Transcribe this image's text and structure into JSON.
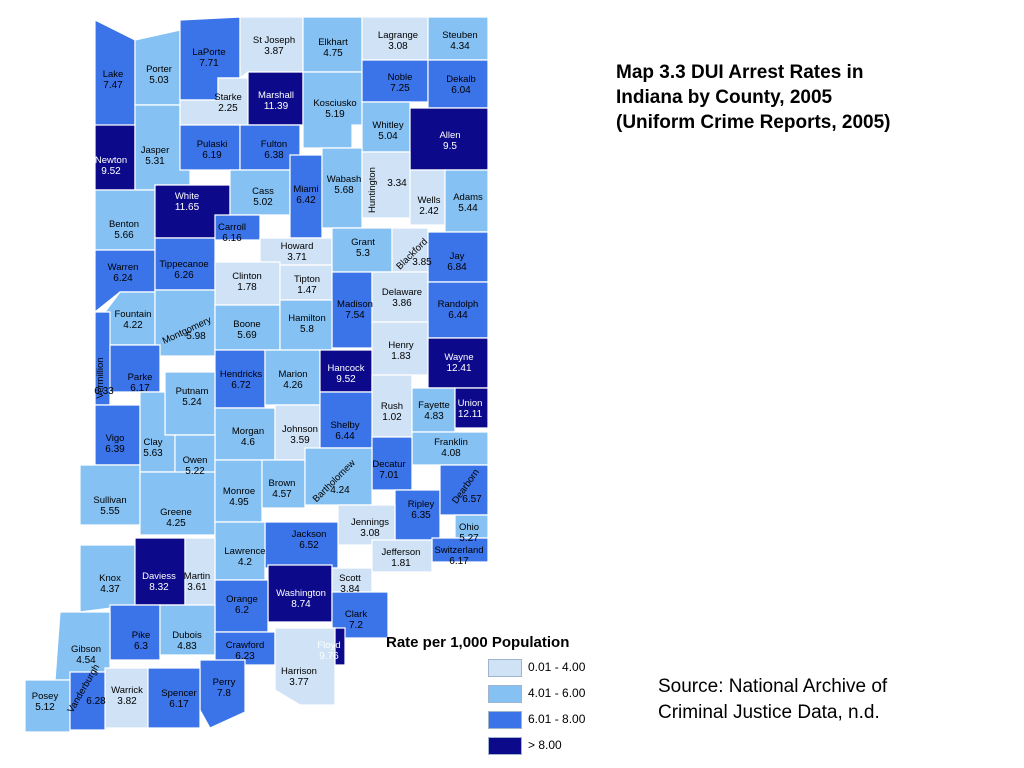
{
  "title_lines": [
    "Map 3.3 DUI Arrest Rates in",
    "Indiana by County, 2005",
    "(Uniform Crime Reports, 2005)"
  ],
  "source_lines": [
    "Source: National Archive of",
    "Criminal Justice Data, n.d."
  ],
  "legend": {
    "title": "Rate per 1,000 Population",
    "items": [
      {
        "label": "0.01 - 4.00",
        "color": "#cfe2f6"
      },
      {
        "label": "4.01 - 6.00",
        "color": "#85c1f2"
      },
      {
        "label": "6.01 - 8.00",
        "color": "#3b73e8"
      },
      {
        "label": "> 8.00",
        "color": "#0c0a8a"
      }
    ]
  },
  "counties": [
    {
      "name": "Lake",
      "value": "7.47"
    },
    {
      "name": "Porter",
      "value": "5.03"
    },
    {
      "name": "LaPorte",
      "value": "7.71"
    },
    {
      "name": "St Joseph",
      "value": "3.87"
    },
    {
      "name": "Elkhart",
      "value": "4.75"
    },
    {
      "name": "Lagrange",
      "value": "3.08"
    },
    {
      "name": "Steuben",
      "value": "4.34"
    },
    {
      "name": "Newton",
      "value": "9.52"
    },
    {
      "name": "Jasper",
      "value": "5.31"
    },
    {
      "name": "Starke",
      "value": "2.25"
    },
    {
      "name": "Marshall",
      "value": "11.39"
    },
    {
      "name": "Kosciusko",
      "value": "5.19"
    },
    {
      "name": "Noble",
      "value": "7.25"
    },
    {
      "name": "Dekalb",
      "value": "6.04"
    },
    {
      "name": "Pulaski",
      "value": "6.19"
    },
    {
      "name": "Fulton",
      "value": "6.38"
    },
    {
      "name": "Whitley",
      "value": "5.04"
    },
    {
      "name": "Allen",
      "value": "9.5"
    },
    {
      "name": "Benton",
      "value": "5.66"
    },
    {
      "name": "White",
      "value": "11.65"
    },
    {
      "name": "Cass",
      "value": "5.02"
    },
    {
      "name": "Miami",
      "value": "6.42"
    },
    {
      "name": "Wabash",
      "value": "5.68"
    },
    {
      "name": "Huntington",
      "value": "3.34"
    },
    {
      "name": "Wells",
      "value": "2.42"
    },
    {
      "name": "Adams",
      "value": "5.44"
    },
    {
      "name": "Warren",
      "value": "6.24"
    },
    {
      "name": "Tippecanoe",
      "value": "6.26"
    },
    {
      "name": "Carroll",
      "value": "6.16"
    },
    {
      "name": "Howard",
      "value": "3.71"
    },
    {
      "name": "Grant",
      "value": "5.3"
    },
    {
      "name": "Blackford",
      "value": "3.85"
    },
    {
      "name": "Jay",
      "value": "6.84"
    },
    {
      "name": "Fountain",
      "value": "4.22"
    },
    {
      "name": "Clinton",
      "value": "1.78"
    },
    {
      "name": "Tipton",
      "value": "1.47"
    },
    {
      "name": "Madison",
      "value": "7.54"
    },
    {
      "name": "Delaware",
      "value": "3.86"
    },
    {
      "name": "Randolph",
      "value": "6.44"
    },
    {
      "name": "Montgomery",
      "value": "5.98"
    },
    {
      "name": "Boone",
      "value": "5.69"
    },
    {
      "name": "Hamilton",
      "value": "5.8"
    },
    {
      "name": "Henry",
      "value": "1.83"
    },
    {
      "name": "Vermillion",
      "value": "6.33"
    },
    {
      "name": "Parke",
      "value": "6.17"
    },
    {
      "name": "Hendricks",
      "value": "6.72"
    },
    {
      "name": "Marion",
      "value": "4.26"
    },
    {
      "name": "Hancock",
      "value": "9.52"
    },
    {
      "name": "Wayne",
      "value": "12.41"
    },
    {
      "name": "Putnam",
      "value": "5.24"
    },
    {
      "name": "Rush",
      "value": "1.02"
    },
    {
      "name": "Fayette",
      "value": "4.83"
    },
    {
      "name": "Union",
      "value": "12.11"
    },
    {
      "name": "Vigo",
      "value": "6.39"
    },
    {
      "name": "Clay",
      "value": "5.63"
    },
    {
      "name": "Morgan",
      "value": "4.6"
    },
    {
      "name": "Johnson",
      "value": "3.59"
    },
    {
      "name": "Shelby",
      "value": "6.44"
    },
    {
      "name": "Franklin",
      "value": "4.08"
    },
    {
      "name": "Owen",
      "value": "5.22"
    },
    {
      "name": "Decatur",
      "value": "7.01"
    },
    {
      "name": "Sullivan",
      "value": "5.55"
    },
    {
      "name": "Greene",
      "value": "4.25"
    },
    {
      "name": "Monroe",
      "value": "4.95"
    },
    {
      "name": "Brown",
      "value": "4.57"
    },
    {
      "name": "Bartholomew",
      "value": "4.24"
    },
    {
      "name": "Ripley",
      "value": "6.35"
    },
    {
      "name": "Dearborn",
      "value": "6.57"
    },
    {
      "name": "Jennings",
      "value": "3.08"
    },
    {
      "name": "Ohio",
      "value": "5.27"
    },
    {
      "name": "Jackson",
      "value": "6.52"
    },
    {
      "name": "Lawrence",
      "value": "4.2"
    },
    {
      "name": "Switzerland",
      "value": "6.17"
    },
    {
      "name": "Jefferson",
      "value": "1.81"
    },
    {
      "name": "Knox",
      "value": "4.37"
    },
    {
      "name": "Daviess",
      "value": "8.32"
    },
    {
      "name": "Martin",
      "value": "3.61"
    },
    {
      "name": "Washington",
      "value": "8.74"
    },
    {
      "name": "Scott",
      "value": "3.84"
    },
    {
      "name": "Orange",
      "value": "6.2"
    },
    {
      "name": "Clark",
      "value": "7.2"
    },
    {
      "name": "Pike",
      "value": "6.3"
    },
    {
      "name": "Dubois",
      "value": "4.83"
    },
    {
      "name": "Gibson",
      "value": "4.54"
    },
    {
      "name": "Crawford",
      "value": "6.23"
    },
    {
      "name": "Floyd",
      "value": "9.76"
    },
    {
      "name": "Harrison",
      "value": "3.77"
    },
    {
      "name": "Perry",
      "value": "7.8"
    },
    {
      "name": "Warrick",
      "value": "3.82"
    },
    {
      "name": "Spencer",
      "value": "6.17"
    },
    {
      "name": "Posey",
      "value": "5.12"
    },
    {
      "name": "Vanderburgh",
      "value": "6.28"
    }
  ]
}
